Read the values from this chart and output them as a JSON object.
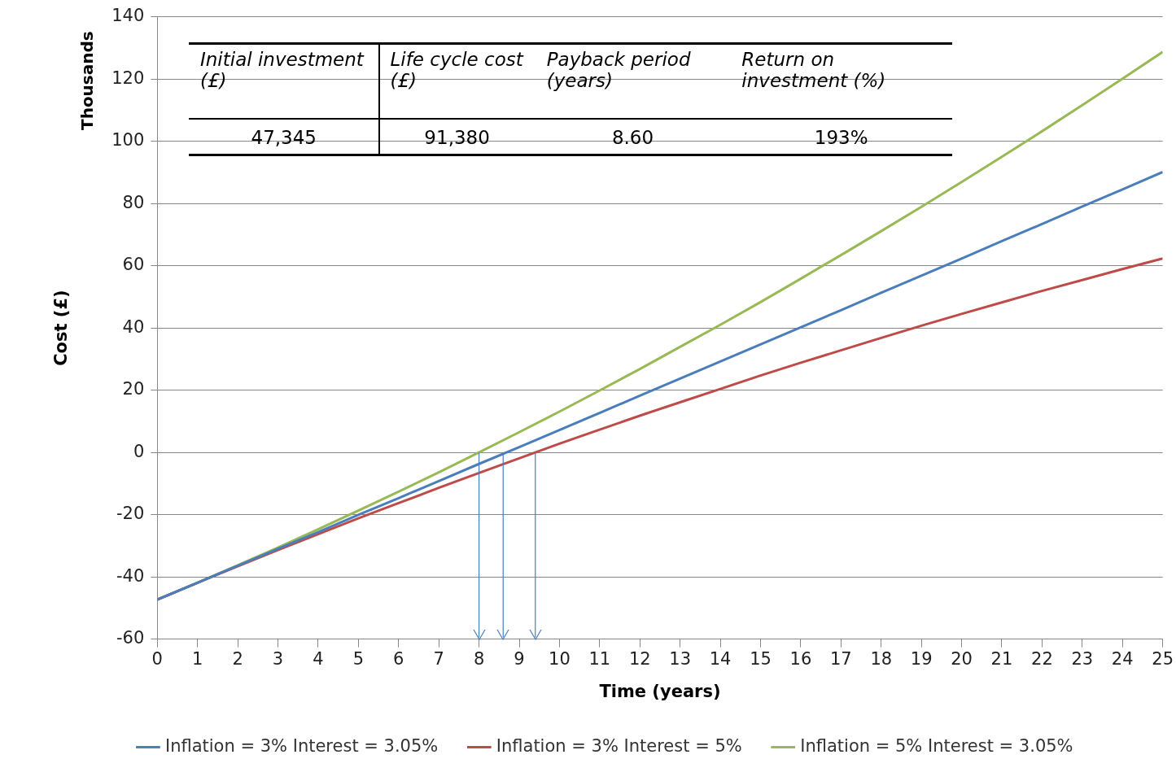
{
  "chart_data": {
    "type": "line",
    "xlabel": "Time (years)",
    "ylabel": "Cost (£)",
    "x": [
      0,
      1,
      2,
      3,
      4,
      5,
      6,
      7,
      8,
      9,
      10,
      11,
      12,
      13,
      14,
      15,
      16,
      17,
      18,
      19,
      20,
      21,
      22,
      23,
      24,
      25
    ],
    "series": [
      {
        "name": "Inflation = 3% Interest = 3.05%",
        "color": "#4a7ebb",
        "values": [
          -47.3,
          -41.9,
          -36.4,
          -31.0,
          -25.6,
          -20.1,
          -14.7,
          -9.2,
          -3.7,
          1.7,
          7.2,
          12.7,
          18.2,
          23.7,
          29.2,
          34.7,
          40.2,
          45.7,
          51.3,
          56.8,
          62.3,
          67.9,
          73.4,
          79.0,
          84.5,
          90.1
        ]
      },
      {
        "name": "Inflation = 3% Interest = 5%",
        "color": "#be4b48",
        "values": [
          -47.3,
          -41.9,
          -36.6,
          -31.4,
          -26.3,
          -21.2,
          -16.3,
          -11.4,
          -6.6,
          -1.9,
          2.8,
          7.3,
          11.8,
          16.1,
          20.4,
          24.7,
          28.8,
          32.8,
          36.8,
          40.7,
          44.5,
          48.2,
          51.9,
          55.4,
          58.9,
          62.3
        ]
      },
      {
        "name": "Inflation = 5% Interest = 3.05%",
        "color": "#98b954",
        "values": [
          -47.3,
          -41.9,
          -36.3,
          -30.6,
          -24.7,
          -18.7,
          -12.6,
          -6.4,
          0.0,
          6.5,
          13.1,
          19.9,
          26.8,
          33.9,
          41.0,
          48.3,
          55.8,
          63.4,
          71.1,
          78.9,
          86.9,
          95.0,
          103.2,
          111.6,
          120.1,
          128.7
        ]
      }
    ],
    "xlim": [
      0,
      25
    ],
    "xticks": [
      0,
      1,
      2,
      3,
      4,
      5,
      6,
      7,
      8,
      9,
      10,
      11,
      12,
      13,
      14,
      15,
      16,
      17,
      18,
      19,
      20,
      21,
      22,
      23,
      24,
      25
    ],
    "ylim": [
      -60,
      140
    ],
    "yticks": [
      -60,
      -40,
      -20,
      0,
      20,
      40,
      60,
      80,
      100,
      120,
      140
    ],
    "grid": "y",
    "legend": "bottom",
    "marker": "none",
    "line_style": "solid",
    "ref_lines": [
      {
        "axis": "x",
        "value": 8,
        "color": "#4a7ebb"
      },
      {
        "axis": "x",
        "value": 8.6,
        "color": "#4a7ebb"
      },
      {
        "axis": "x",
        "value": 9.4,
        "color": "#4a7ebb"
      }
    ],
    "annotations": [
      "Thousands",
      "Initial investment (£)",
      "Life cycle cost (£)",
      "Payback period (years)",
      "Return on investment (%)",
      "47,345",
      "91,380",
      "8.60",
      "193%"
    ]
  }
}
